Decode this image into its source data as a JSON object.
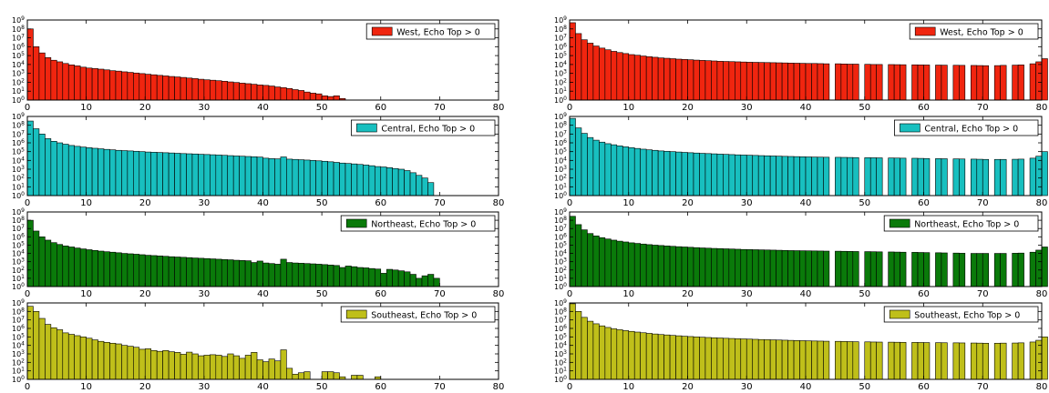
{
  "chart_data": [
    {
      "type": "bar",
      "panel": "left",
      "legend": "West, Echo Top > 0",
      "color": "#f0250f",
      "x": [
        0,
        1,
        2,
        3,
        4,
        5,
        6,
        7,
        8,
        9,
        10,
        11,
        12,
        13,
        14,
        15,
        16,
        17,
        18,
        19,
        20,
        21,
        22,
        23,
        24,
        25,
        26,
        27,
        28,
        29,
        30,
        31,
        32,
        33,
        34,
        35,
        36,
        37,
        38,
        39,
        40,
        41,
        42,
        43,
        44,
        45,
        46,
        47,
        48,
        49,
        50,
        51,
        52,
        53,
        54,
        55,
        56,
        57
      ],
      "values": [
        100000000.0,
        1000000.0,
        200000.0,
        60000.0,
        30000.0,
        20000.0,
        13000.0,
        9000.0,
        7000.0,
        5000.0,
        4000.0,
        3500.0,
        3000.0,
        2500.0,
        2000.0,
        1800.0,
        1500.0,
        1300.0,
        1100.0,
        950,
        800,
        700,
        600,
        520,
        450,
        400,
        350,
        300,
        260,
        220,
        190,
        170,
        150,
        130,
        110,
        95,
        80,
        70,
        60,
        50,
        45,
        38,
        30,
        25,
        20,
        15,
        12,
        8,
        6,
        5,
        3,
        2.5,
        3,
        1.5,
        1,
        0.8,
        0.5,
        0.5
      ],
      "xlim": [
        0,
        80
      ],
      "xticks": [
        0,
        10,
        20,
        30,
        40,
        50,
        60,
        70,
        80
      ],
      "ylim": [
        1,
        1000000000.0
      ],
      "yscale": "log",
      "legend_position": "top-right"
    },
    {
      "type": "bar",
      "panel": "left",
      "legend": "Central, Echo Top > 0",
      "color": "#18bfbf",
      "x": [
        0,
        1,
        2,
        3,
        4,
        5,
        6,
        7,
        8,
        9,
        10,
        11,
        12,
        13,
        14,
        15,
        16,
        17,
        18,
        19,
        20,
        21,
        22,
        23,
        24,
        25,
        26,
        27,
        28,
        29,
        30,
        31,
        32,
        33,
        34,
        35,
        36,
        37,
        38,
        39,
        40,
        41,
        42,
        43,
        44,
        45,
        46,
        47,
        48,
        49,
        50,
        51,
        52,
        53,
        54,
        55,
        56,
        57,
        58,
        59,
        60,
        61,
        62,
        63,
        64,
        65,
        66,
        67,
        68
      ],
      "values": [
        300000000.0,
        40000000.0,
        10000000.0,
        3000000.0,
        1500000.0,
        1000000.0,
        700000.0,
        500000.0,
        400000.0,
        330000.0,
        280000.0,
        240000.0,
        210000.0,
        180000.0,
        160000.0,
        140000.0,
        130000.0,
        120000.0,
        110000.0,
        100000.0,
        90000.0,
        85000.0,
        80000.0,
        75000.0,
        70000.0,
        65000.0,
        60000.0,
        57000.0,
        54000.0,
        50000.0,
        47000.0,
        44000.0,
        41000.0,
        38000.0,
        35000.0,
        32000.0,
        30000.0,
        28000.0,
        26000.0,
        24000.0,
        18000.0,
        16000.0,
        15000.0,
        25000.0,
        14000.0,
        13000.0,
        12000.0,
        11000.0,
        10000.0,
        9000.0,
        8000.0,
        7000.0,
        6000.0,
        5000.0,
        4500.0,
        4000.0,
        3500.0,
        3000.0,
        2500.0,
        2000.0,
        1800.0,
        1500.0,
        1200.0,
        1000.0,
        700,
        400,
        200,
        100,
        30
      ],
      "xlim": [
        0,
        80
      ],
      "xticks": [
        0,
        10,
        20,
        30,
        40,
        50,
        60,
        70,
        80
      ],
      "ylim": [
        1,
        1000000000.0
      ],
      "yscale": "log",
      "legend_position": "top-right"
    },
    {
      "type": "bar",
      "panel": "left",
      "legend": "Northeast, Echo Top > 0",
      "color": "#0a7a0a",
      "x": [
        0,
        1,
        2,
        3,
        4,
        5,
        6,
        7,
        8,
        9,
        10,
        11,
        12,
        13,
        14,
        15,
        16,
        17,
        18,
        19,
        20,
        21,
        22,
        23,
        24,
        25,
        26,
        27,
        28,
        29,
        30,
        31,
        32,
        33,
        34,
        35,
        36,
        37,
        38,
        39,
        40,
        41,
        42,
        43,
        44,
        45,
        46,
        47,
        48,
        49,
        50,
        51,
        52,
        53,
        54,
        55,
        56,
        57,
        58,
        59,
        60,
        61,
        62,
        63,
        64,
        65,
        66,
        67,
        68,
        69,
        70
      ],
      "values": [
        100000000.0,
        5000000.0,
        1000000.0,
        400000.0,
        200000.0,
        120000.0,
        80000.0,
        60000.0,
        45000.0,
        35000.0,
        28000.0,
        23000.0,
        19000.0,
        16000.0,
        14000.0,
        12000.0,
        10000.0,
        9000.0,
        8000.0,
        7000.0,
        6000.0,
        5500.0,
        5000.0,
        4500.0,
        4000.0,
        3700.0,
        3400.0,
        3100.0,
        2800.0,
        2600.0,
        2400.0,
        2200.0,
        2000.0,
        1800.0,
        1700.0,
        1500.0,
        1400.0,
        1300.0,
        800,
        1200.0,
        700,
        600,
        500,
        2000.0,
        800,
        700,
        650,
        600,
        550,
        500,
        450,
        400,
        350,
        200,
        300,
        250,
        200,
        180,
        150,
        130,
        40,
        120,
        100,
        80,
        60,
        30,
        10,
        20,
        30,
        10,
        1
      ],
      "xlim": [
        0,
        80
      ],
      "xticks": [
        0,
        10,
        20,
        30,
        40,
        50,
        60,
        70,
        80
      ],
      "ylim": [
        1,
        1000000000.0
      ],
      "yscale": "log",
      "legend_position": "top-right"
    },
    {
      "type": "bar",
      "panel": "left",
      "legend": "Southeast, Echo Top > 0",
      "color": "#bfbf1a",
      "x": [
        0,
        1,
        2,
        3,
        4,
        5,
        6,
        7,
        8,
        9,
        10,
        11,
        12,
        13,
        14,
        15,
        16,
        17,
        18,
        19,
        20,
        21,
        22,
        23,
        24,
        25,
        26,
        27,
        28,
        29,
        30,
        31,
        32,
        33,
        34,
        35,
        36,
        37,
        38,
        39,
        40,
        41,
        42,
        43,
        44,
        45,
        46,
        47,
        48,
        49,
        50,
        51,
        52,
        53,
        54,
        55,
        56,
        57,
        58,
        59
      ],
      "values": [
        400000000.0,
        100000000.0,
        15000000.0,
        3000000.0,
        1200000.0,
        700000.0,
        300000.0,
        200000.0,
        140000.0,
        100000.0,
        70000.0,
        45000.0,
        30000.0,
        23000.0,
        18000.0,
        15000.0,
        10000.0,
        8000.0,
        6000.0,
        3500.0,
        4000.0,
        2500.0,
        2000.0,
        2500.0,
        1800.0,
        1500.0,
        900,
        1600.0,
        1000.0,
        600,
        700,
        800,
        700,
        500,
        1000.0,
        600,
        300,
        700,
        1500.0,
        200,
        120,
        250,
        150,
        3000.0,
        20,
        4,
        6,
        8,
        0,
        0,
        8,
        8,
        6,
        2,
        0,
        3,
        3,
        0,
        0,
        2
      ],
      "xlim": [
        0,
        80
      ],
      "xticks": [
        0,
        10,
        20,
        30,
        40,
        50,
        60,
        70,
        80
      ],
      "ylim": [
        1,
        1000000000.0
      ],
      "yscale": "log",
      "legend_position": "top-right"
    },
    {
      "type": "bar",
      "panel": "right",
      "legend": "West, Echo Top > 0",
      "color": "#f0250f",
      "x": [
        0,
        1,
        2,
        3,
        4,
        5,
        6,
        7,
        8,
        9,
        10,
        11,
        12,
        13,
        14,
        15,
        16,
        17,
        18,
        19,
        20,
        21,
        22,
        23,
        24,
        25,
        26,
        27,
        28,
        29,
        30,
        31,
        32,
        33,
        34,
        35,
        36,
        37,
        38,
        39,
        40,
        41,
        42,
        43,
        45,
        46,
        47,
        48,
        50,
        51,
        52,
        54,
        55,
        56,
        58,
        59,
        60,
        62,
        63,
        65,
        66,
        68,
        69,
        70,
        72,
        73,
        75,
        76,
        78,
        79,
        80
      ],
      "values": [
        500000000.0,
        30000000.0,
        6000000.0,
        2500000.0,
        1200000.0,
        700000.0,
        450000.0,
        300000.0,
        220000.0,
        170000.0,
        130000.0,
        110000.0,
        90000.0,
        75000.0,
        65000.0,
        55000.0,
        50000.0,
        45000.0,
        40000.0,
        37000.0,
        34000.0,
        31000.0,
        29000.0,
        27000.0,
        25000.0,
        23000.0,
        22000.0,
        21000.0,
        20000.0,
        19000.0,
        18000.0,
        17500.0,
        17000.0,
        16500.0,
        16000.0,
        15500.0,
        15000.0,
        14500.0,
        14000.0,
        13500.0,
        13000.0,
        13000.0,
        12500.0,
        12000.0,
        12000.0,
        11500.0,
        11000.0,
        11000.0,
        10500.0,
        10000.0,
        10000.0,
        9800.0,
        9600.0,
        9400.0,
        9200.0,
        9000.0,
        8800.0,
        8600.0,
        8400.0,
        8200.0,
        8000.0,
        7800.0,
        7600.0,
        7400.0,
        7500.0,
        8000.0,
        8500.0,
        9000.0,
        12000.0,
        20000.0,
        45000.0
      ],
      "xlim": [
        0,
        80
      ],
      "xticks": [
        0,
        10,
        20,
        30,
        40,
        50,
        60,
        70,
        80
      ],
      "ylim": [
        1,
        1000000000.0
      ],
      "yscale": "log",
      "legend_position": "top-right"
    },
    {
      "type": "bar",
      "panel": "right",
      "legend": "Central, Echo Top > 0",
      "color": "#18bfbf",
      "x": [
        0,
        1,
        2,
        3,
        4,
        5,
        6,
        7,
        8,
        9,
        10,
        11,
        12,
        13,
        14,
        15,
        16,
        17,
        18,
        19,
        20,
        21,
        22,
        23,
        24,
        25,
        26,
        27,
        28,
        29,
        30,
        31,
        32,
        33,
        34,
        35,
        36,
        37,
        38,
        39,
        40,
        41,
        42,
        43,
        45,
        46,
        47,
        48,
        50,
        51,
        52,
        54,
        55,
        56,
        58,
        59,
        60,
        62,
        63,
        65,
        66,
        68,
        69,
        70,
        72,
        73,
        75,
        76,
        78,
        79,
        80
      ],
      "values": [
        600000000.0,
        50000000.0,
        12000000.0,
        4000000.0,
        2000000.0,
        1200000.0,
        800000.0,
        600000.0,
        450000.0,
        350000.0,
        280000.0,
        230000.0,
        190000.0,
        160000.0,
        140000.0,
        120000.0,
        110000.0,
        100000.0,
        90000.0,
        82000.0,
        75000.0,
        69000.0,
        64000.0,
        60000.0,
        56000.0,
        52000.0,
        49000.0,
        46000.0,
        43000.0,
        41000.0,
        39000.0,
        37000.0,
        35000.0,
        33500.0,
        32000.0,
        30500.0,
        29000.0,
        28000.0,
        27000.0,
        26000.0,
        25000.0,
        24000.0,
        23500.0,
        23000.0,
        22500.0,
        22000.0,
        21500.0,
        21000.0,
        20500.0,
        20000.0,
        19500.0,
        19000.0,
        18500.0,
        18000.0,
        17500.0,
        17000.0,
        16500.0,
        16000.0,
        15500.0,
        15000.0,
        14500.0,
        14000.0,
        13500.0,
        13000.0,
        13000.0,
        13000.0,
        13500.0,
        14000.0,
        18000.0,
        30000.0,
        100000.0
      ],
      "xlim": [
        0,
        80
      ],
      "xticks": [
        0,
        10,
        20,
        30,
        40,
        50,
        60,
        70,
        80
      ],
      "ylim": [
        1,
        1000000000.0
      ],
      "yscale": "log",
      "legend_position": "top-right"
    },
    {
      "type": "bar",
      "panel": "right",
      "legend": "Northeast, Echo Top > 0",
      "color": "#0a7a0a",
      "x": [
        0,
        1,
        2,
        3,
        4,
        5,
        6,
        7,
        8,
        9,
        10,
        11,
        12,
        13,
        14,
        15,
        16,
        17,
        18,
        19,
        20,
        21,
        22,
        23,
        24,
        25,
        26,
        27,
        28,
        29,
        30,
        31,
        32,
        33,
        34,
        35,
        36,
        37,
        38,
        39,
        40,
        41,
        42,
        43,
        45,
        46,
        47,
        48,
        50,
        51,
        52,
        54,
        55,
        56,
        58,
        59,
        60,
        62,
        63,
        65,
        66,
        68,
        69,
        70,
        72,
        73,
        75,
        76,
        78,
        79,
        80
      ],
      "values": [
        300000000.0,
        30000000.0,
        7000000.0,
        2500000.0,
        1300000.0,
        800000.0,
        550000.0,
        400000.0,
        300000.0,
        240000.0,
        190000.0,
        160000.0,
        135000.0,
        115000.0,
        100000.0,
        90000.0,
        80000.0,
        72000.0,
        65000.0,
        60000.0,
        55000.0,
        50000.0,
        46000.0,
        43000.0,
        40000.0,
        38000.0,
        36000.0,
        34000.0,
        32000.0,
        30000.0,
        29000.0,
        28000.0,
        27000.0,
        26000.0,
        25000.0,
        24000.0,
        23000.0,
        22000.0,
        21500.0,
        21000.0,
        20500.0,
        20000.0,
        19500.0,
        19000.0,
        18500.0,
        18000.0,
        17500.0,
        17000.0,
        16500.0,
        16000.0,
        15500.0,
        15000.0,
        14500.0,
        14000.0,
        13500.0,
        13000.0,
        12500.0,
        12000.0,
        11500.0,
        11000.0,
        10500.0,
        10000.0,
        10000.0,
        10000.0,
        10000.0,
        10000.0,
        10500.0,
        11000.0,
        14000.0,
        25000.0,
        60000.0
      ],
      "xlim": [
        0,
        80
      ],
      "xticks": [
        0,
        10,
        20,
        30,
        40,
        50,
        60,
        70,
        80
      ],
      "ylim": [
        1,
        1000000000.0
      ],
      "yscale": "log",
      "legend_position": "top-right"
    },
    {
      "type": "bar",
      "panel": "right",
      "legend": "Southeast, Echo Top > 0",
      "color": "#bfbf1a",
      "x": [
        0,
        1,
        2,
        3,
        4,
        5,
        6,
        7,
        8,
        9,
        10,
        11,
        12,
        13,
        14,
        15,
        16,
        17,
        18,
        19,
        20,
        21,
        22,
        23,
        24,
        25,
        26,
        27,
        28,
        29,
        30,
        31,
        32,
        33,
        34,
        35,
        36,
        37,
        38,
        39,
        40,
        41,
        42,
        43,
        45,
        46,
        47,
        48,
        50,
        51,
        52,
        54,
        55,
        56,
        58,
        59,
        60,
        62,
        63,
        65,
        66,
        68,
        69,
        70,
        72,
        73,
        75,
        76,
        78,
        79,
        80
      ],
      "values": [
        800000000.0,
        100000000.0,
        20000000.0,
        7000000.0,
        3500000.0,
        2000000.0,
        1300000.0,
        900000.0,
        700000.0,
        550000.0,
        450000.0,
        370000.0,
        310000.0,
        260000.0,
        220000.0,
        190000.0,
        170000.0,
        150000.0,
        135000.0,
        120000.0,
        110000.0,
        100000.0,
        92000.0,
        85000.0,
        79000.0,
        74000.0,
        69000.0,
        65000.0,
        61000.0,
        58000.0,
        55000.0,
        52000.0,
        49000.0,
        47000.0,
        45000.0,
        43000.0,
        41000.0,
        39000.0,
        37500.0,
        36000.0,
        34500.0,
        33000.0,
        32000.0,
        31000.0,
        30000.0,
        29000.0,
        28000.0,
        27000.0,
        26000.0,
        25000.0,
        24500.0,
        24000.0,
        23500.0,
        23000.0,
        22500.0,
        22000.0,
        21500.0,
        21000.0,
        20500.0,
        20000.0,
        19500.0,
        19000.0,
        18500.0,
        18000.0,
        18000.0,
        18500.0,
        19000.0,
        20000.0,
        25000.0,
        40000.0,
        100000.0
      ],
      "xlim": [
        0,
        80
      ],
      "xticks": [
        0,
        10,
        20,
        30,
        40,
        50,
        60,
        70,
        80
      ],
      "ylim": [
        1,
        1000000000.0
      ],
      "yscale": "log",
      "legend_position": "top-right"
    }
  ]
}
